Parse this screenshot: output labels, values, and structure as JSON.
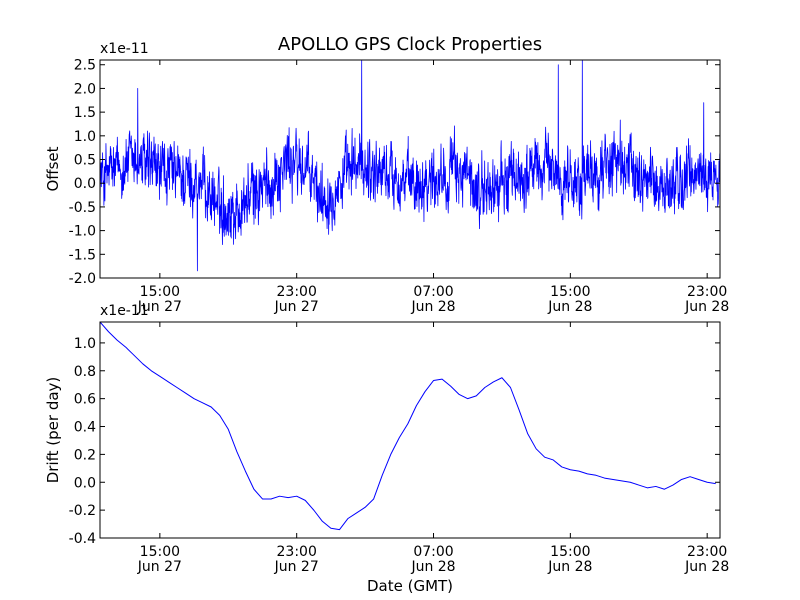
{
  "figure": {
    "title": "APOLLO GPS Clock Properties",
    "xlabel": "Date (GMT)"
  },
  "chart_data": [
    {
      "type": "line",
      "title": "APOLLO GPS Clock Properties",
      "ylabel": "Offset",
      "scale_label": "x1e-11",
      "ylim": [
        -2.0,
        2.6
      ],
      "yticks": [
        "-2.0",
        "-1.5",
        "-1.0",
        "-0.5",
        "0.0",
        "0.5",
        "1.0",
        "1.5",
        "2.0",
        "2.5"
      ],
      "xlim": [
        "2014-06-27 11:30",
        "2014-06-28 23:45"
      ],
      "xticks": [
        {
          "time": "15:00",
          "date": "Jun 27"
        },
        {
          "time": "23:00",
          "date": "Jun 27"
        },
        {
          "time": "07:00",
          "date": "Jun 28"
        },
        {
          "time": "15:00",
          "date": "Jun 28"
        },
        {
          "time": "23:00",
          "date": "Jun 28"
        }
      ],
      "line_color": "#0000ff",
      "series": [
        {
          "name": "",
          "x_hours": [
            11.5,
            12.5,
            13.5,
            14.5,
            15.5,
            16.5,
            17.5,
            18.5,
            19.5,
            20.5,
            21.5,
            22.5,
            23.5,
            24.5,
            25.5,
            26.5,
            27.5,
            28.5,
            29.5,
            30.5,
            31.5,
            32.5,
            33.5,
            34.5,
            35.5,
            36.5,
            37.5,
            38.5,
            39.5,
            40.5,
            41.5,
            42.5,
            43.5,
            44.5,
            45.5,
            46.5,
            47.5
          ],
          "y": [
            0.1,
            0.3,
            0.5,
            0.3,
            0.2,
            0.1,
            0.0,
            -0.5,
            -0.6,
            -0.2,
            0.0,
            0.5,
            0.3,
            -0.3,
            0.0,
            0.4,
            0.3,
            0.2,
            0.0,
            0.1,
            0.2,
            0.3,
            -0.2,
            -0.1,
            0.1,
            0.2,
            0.4,
            0.1,
            0.0,
            0.2,
            0.5,
            0.3,
            0.1,
            -0.1,
            0.0,
            0.2,
            0.1
          ],
          "peaks": [
            {
              "x_hour": 13.7,
              "y": 2.0
            },
            {
              "x_hour": 17.2,
              "y": -1.85
            },
            {
              "x_hour": 26.8,
              "y": 2.6
            },
            {
              "x_hour": 38.3,
              "y": 2.5
            },
            {
              "x_hour": 39.7,
              "y": 2.6
            },
            {
              "x_hour": 46.8,
              "y": 1.7
            }
          ]
        }
      ]
    },
    {
      "type": "line",
      "ylabel": "Drift (per day)",
      "scale_label": "x1e-11",
      "ylim": [
        -0.4,
        1.15
      ],
      "yticks": [
        "-0.4",
        "-0.2",
        "0.0",
        "0.2",
        "0.4",
        "0.6",
        "0.8",
        "1.0"
      ],
      "xlim": [
        "2014-06-27 11:30",
        "2014-06-28 23:45"
      ],
      "xticks": [
        {
          "time": "15:00",
          "date": "Jun 27"
        },
        {
          "time": "23:00",
          "date": "Jun 27"
        },
        {
          "time": "07:00",
          "date": "Jun 28"
        },
        {
          "time": "15:00",
          "date": "Jun 28"
        },
        {
          "time": "23:00",
          "date": "Jun 28"
        }
      ],
      "line_color": "#0000ff",
      "series": [
        {
          "name": "",
          "x_hours": [
            11.5,
            12.0,
            12.5,
            13.0,
            13.5,
            14.0,
            14.5,
            15.0,
            15.5,
            16.0,
            16.5,
            17.0,
            17.5,
            18.0,
            18.5,
            19.0,
            19.5,
            20.0,
            20.5,
            21.0,
            21.5,
            22.0,
            22.5,
            23.0,
            23.5,
            24.0,
            24.5,
            25.0,
            25.5,
            26.0,
            26.5,
            27.0,
            27.5,
            28.0,
            28.5,
            29.0,
            29.5,
            30.0,
            30.5,
            31.0,
            31.5,
            32.0,
            32.5,
            33.0,
            33.5,
            34.0,
            34.5,
            35.0,
            35.5,
            36.0,
            36.5,
            37.0,
            37.5,
            38.0,
            38.5,
            39.0,
            39.5,
            40.0,
            40.5,
            41.0,
            41.5,
            42.0,
            42.5,
            43.0,
            43.5,
            44.0,
            44.5,
            45.0,
            45.5,
            46.0,
            46.5,
            47.0,
            47.5
          ],
          "y": [
            1.15,
            1.08,
            1.02,
            0.97,
            0.91,
            0.85,
            0.8,
            0.76,
            0.72,
            0.68,
            0.64,
            0.6,
            0.57,
            0.54,
            0.48,
            0.38,
            0.22,
            0.08,
            -0.05,
            -0.12,
            -0.12,
            -0.1,
            -0.11,
            -0.1,
            -0.13,
            -0.2,
            -0.28,
            -0.33,
            -0.34,
            -0.26,
            -0.22,
            -0.18,
            -0.12,
            0.05,
            0.2,
            0.32,
            0.42,
            0.55,
            0.65,
            0.73,
            0.74,
            0.69,
            0.63,
            0.6,
            0.62,
            0.68,
            0.72,
            0.75,
            0.68,
            0.52,
            0.35,
            0.24,
            0.18,
            0.16,
            0.11,
            0.09,
            0.08,
            0.06,
            0.05,
            0.03,
            0.02,
            0.01,
            0.0,
            -0.02,
            -0.04,
            -0.03,
            -0.05,
            -0.02,
            0.02,
            0.04,
            0.02,
            0.0,
            -0.01
          ]
        }
      ]
    }
  ]
}
